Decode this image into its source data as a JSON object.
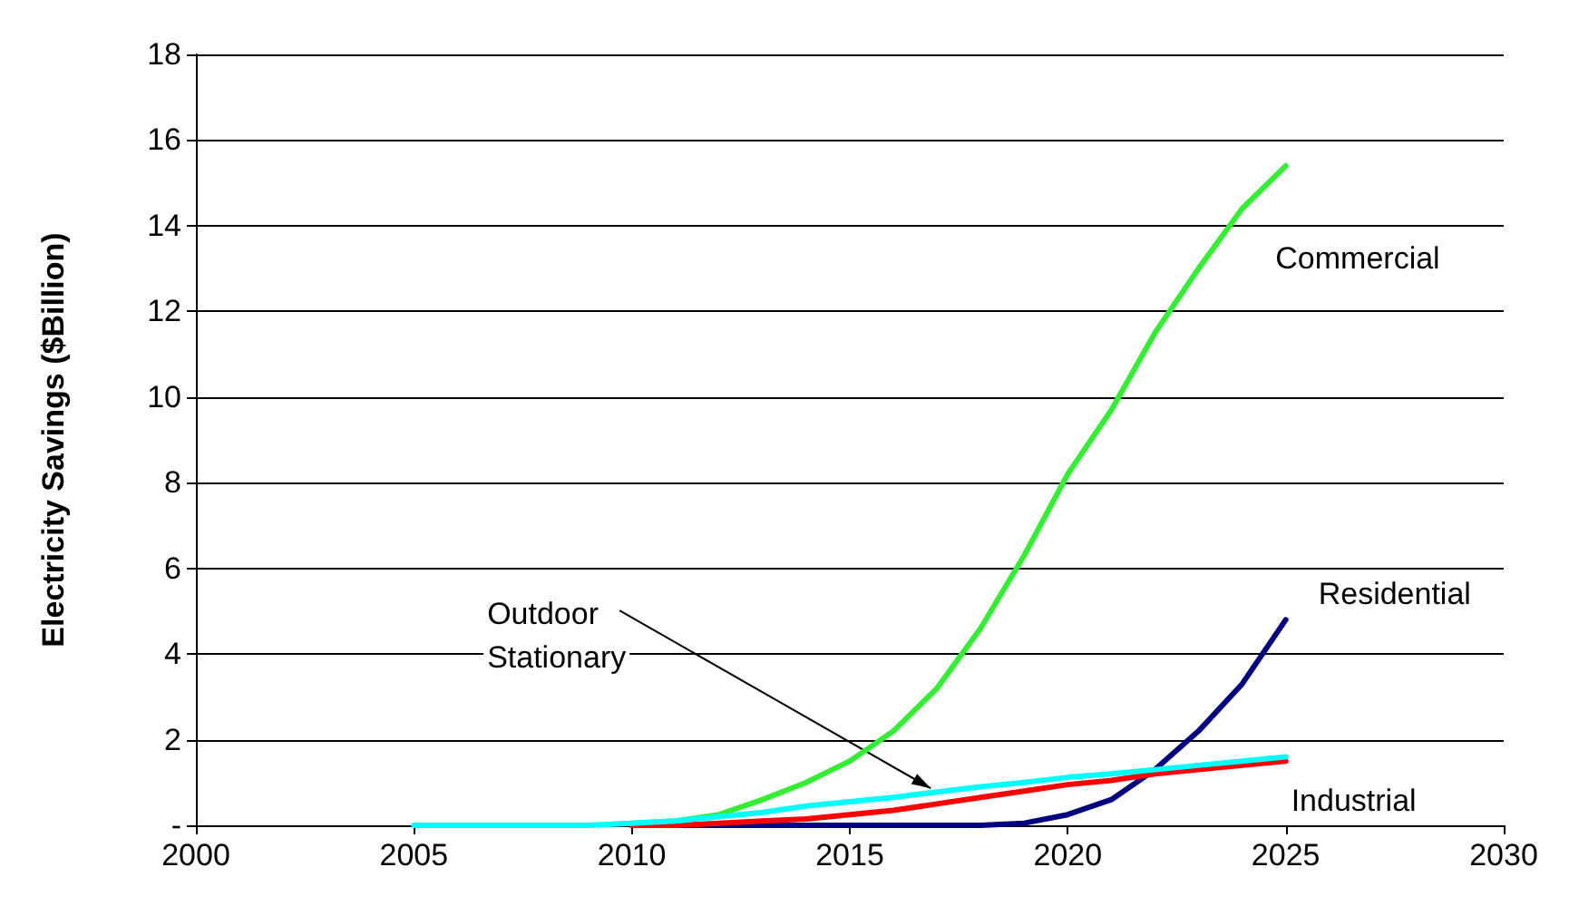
{
  "chart_data": {
    "type": "line",
    "ylabel": "Electricity Savings ($Billion)",
    "x": [
      2005,
      2006,
      2007,
      2008,
      2009,
      2010,
      2011,
      2012,
      2013,
      2014,
      2015,
      2016,
      2017,
      2018,
      2019,
      2020,
      2021,
      2022,
      2023,
      2024,
      2025
    ],
    "series": [
      {
        "name": "Commercial",
        "color": "#33ee33",
        "values": [
          null,
          null,
          null,
          null,
          null,
          0.05,
          0.1,
          0.25,
          0.6,
          1.0,
          1.5,
          2.2,
          3.2,
          4.6,
          6.3,
          8.2,
          9.7,
          11.5,
          13.0,
          14.4,
          15.4
        ]
      },
      {
        "name": "Residential",
        "color": "#000080",
        "values": [
          null,
          null,
          null,
          null,
          null,
          0,
          0,
          0,
          0,
          0,
          0,
          0,
          0,
          0,
          0.05,
          0.25,
          0.6,
          1.3,
          2.2,
          3.3,
          4.8
        ]
      },
      {
        "name": "Industrial",
        "color": "#ff0000",
        "values": [
          null,
          null,
          null,
          null,
          null,
          0,
          0,
          0.05,
          0.1,
          0.15,
          0.25,
          0.35,
          0.5,
          0.65,
          0.8,
          0.95,
          1.05,
          1.2,
          1.3,
          1.4,
          1.5
        ]
      },
      {
        "name": "Outdoor\nStationary",
        "color": "#00ffff",
        "values": [
          0,
          0,
          0,
          0,
          0,
          0.05,
          0.1,
          0.2,
          0.3,
          0.45,
          0.55,
          0.65,
          0.78,
          0.9,
          1.0,
          1.12,
          1.2,
          1.3,
          1.4,
          1.5,
          1.6
        ]
      }
    ],
    "xlim": [
      2000,
      2030
    ],
    "xticks": [
      2000,
      2005,
      2010,
      2015,
      2020,
      2025,
      2030
    ],
    "ylim": [
      0,
      18
    ],
    "yticks": [
      {
        "value": 0,
        "label": "-"
      },
      2,
      4,
      6,
      8,
      10,
      12,
      14,
      16,
      18
    ],
    "grid": "y",
    "legend": false,
    "marker": "none",
    "line_style": "solid"
  }
}
